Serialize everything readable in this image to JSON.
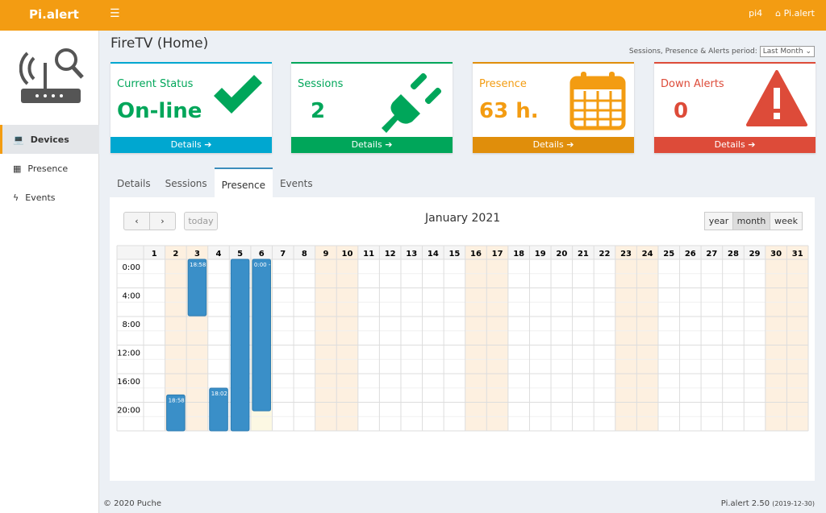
{
  "header": {
    "logo": "Pi.alert",
    "menu_icon": "hamburger-icon",
    "user": "pi4",
    "app": "Pi.alert"
  },
  "sidebar": {
    "items": [
      {
        "label": "Devices",
        "icon": "laptop-icon",
        "active": true
      },
      {
        "label": "Presence",
        "icon": "calendar-icon"
      },
      {
        "label": "Events",
        "icon": "bolt-icon"
      }
    ]
  },
  "page": {
    "title": "FireTV (Home)",
    "period_label": "Sessions, Presence & Alerts period:",
    "period_value": "Last Month"
  },
  "cards": [
    {
      "label": "Current Status",
      "value": "On-line",
      "footer": "Details",
      "color": "#00a7d0",
      "text_color": "#00a65a",
      "icon": "check-icon"
    },
    {
      "label": "Sessions",
      "value": "2",
      "footer": "Details",
      "color": "#00a65a",
      "text_color": "#00a65a",
      "icon": "plug-icon"
    },
    {
      "label": "Presence",
      "value": "63 h.",
      "footer": "Details",
      "color": "#e08e0b",
      "text_color": "#f39c12",
      "icon": "calendar-icon"
    },
    {
      "label": "Down Alerts",
      "value": "0",
      "footer": "Details",
      "color": "#dd4b39",
      "text_color": "#dd4b39",
      "icon": "warning-icon"
    }
  ],
  "tabs": [
    "Details",
    "Sessions",
    "Presence",
    "Events"
  ],
  "active_tab": "Presence",
  "calendar": {
    "title": "January 2021",
    "today_label": "today",
    "views": [
      "year",
      "month",
      "week"
    ],
    "active_view": "month",
    "days": [
      "1",
      "2",
      "3",
      "4",
      "5",
      "6",
      "7",
      "8",
      "9",
      "10",
      "11",
      "12",
      "13",
      "14",
      "15",
      "16",
      "17",
      "18",
      "19",
      "20",
      "21",
      "22",
      "23",
      "24",
      "25",
      "26",
      "27",
      "28",
      "29",
      "30",
      "31"
    ],
    "weekend": [
      2,
      3,
      9,
      10,
      16,
      17,
      23,
      24,
      30,
      31
    ],
    "today": 6,
    "hours": [
      "0:00",
      "4:00",
      "8:00",
      "12:00",
      "16:00",
      "20:00"
    ],
    "events": [
      {
        "day": 2,
        "start": 18.97,
        "end": 24,
        "label": "18:58"
      },
      {
        "day": 3,
        "start": 0,
        "end": 7.9,
        "label": "18:58"
      },
      {
        "day": 4,
        "start": 18.03,
        "end": 24,
        "label": "18:02"
      },
      {
        "day": 5,
        "start": 0,
        "end": 24,
        "label": ""
      },
      {
        "day": 6,
        "start": 0,
        "end": 21.2,
        "label": "0:00 -"
      }
    ]
  },
  "footer": {
    "copyright": "© 2020 Puche",
    "version": "Pi.alert  2.50",
    "date": "(2019-12-30)"
  }
}
